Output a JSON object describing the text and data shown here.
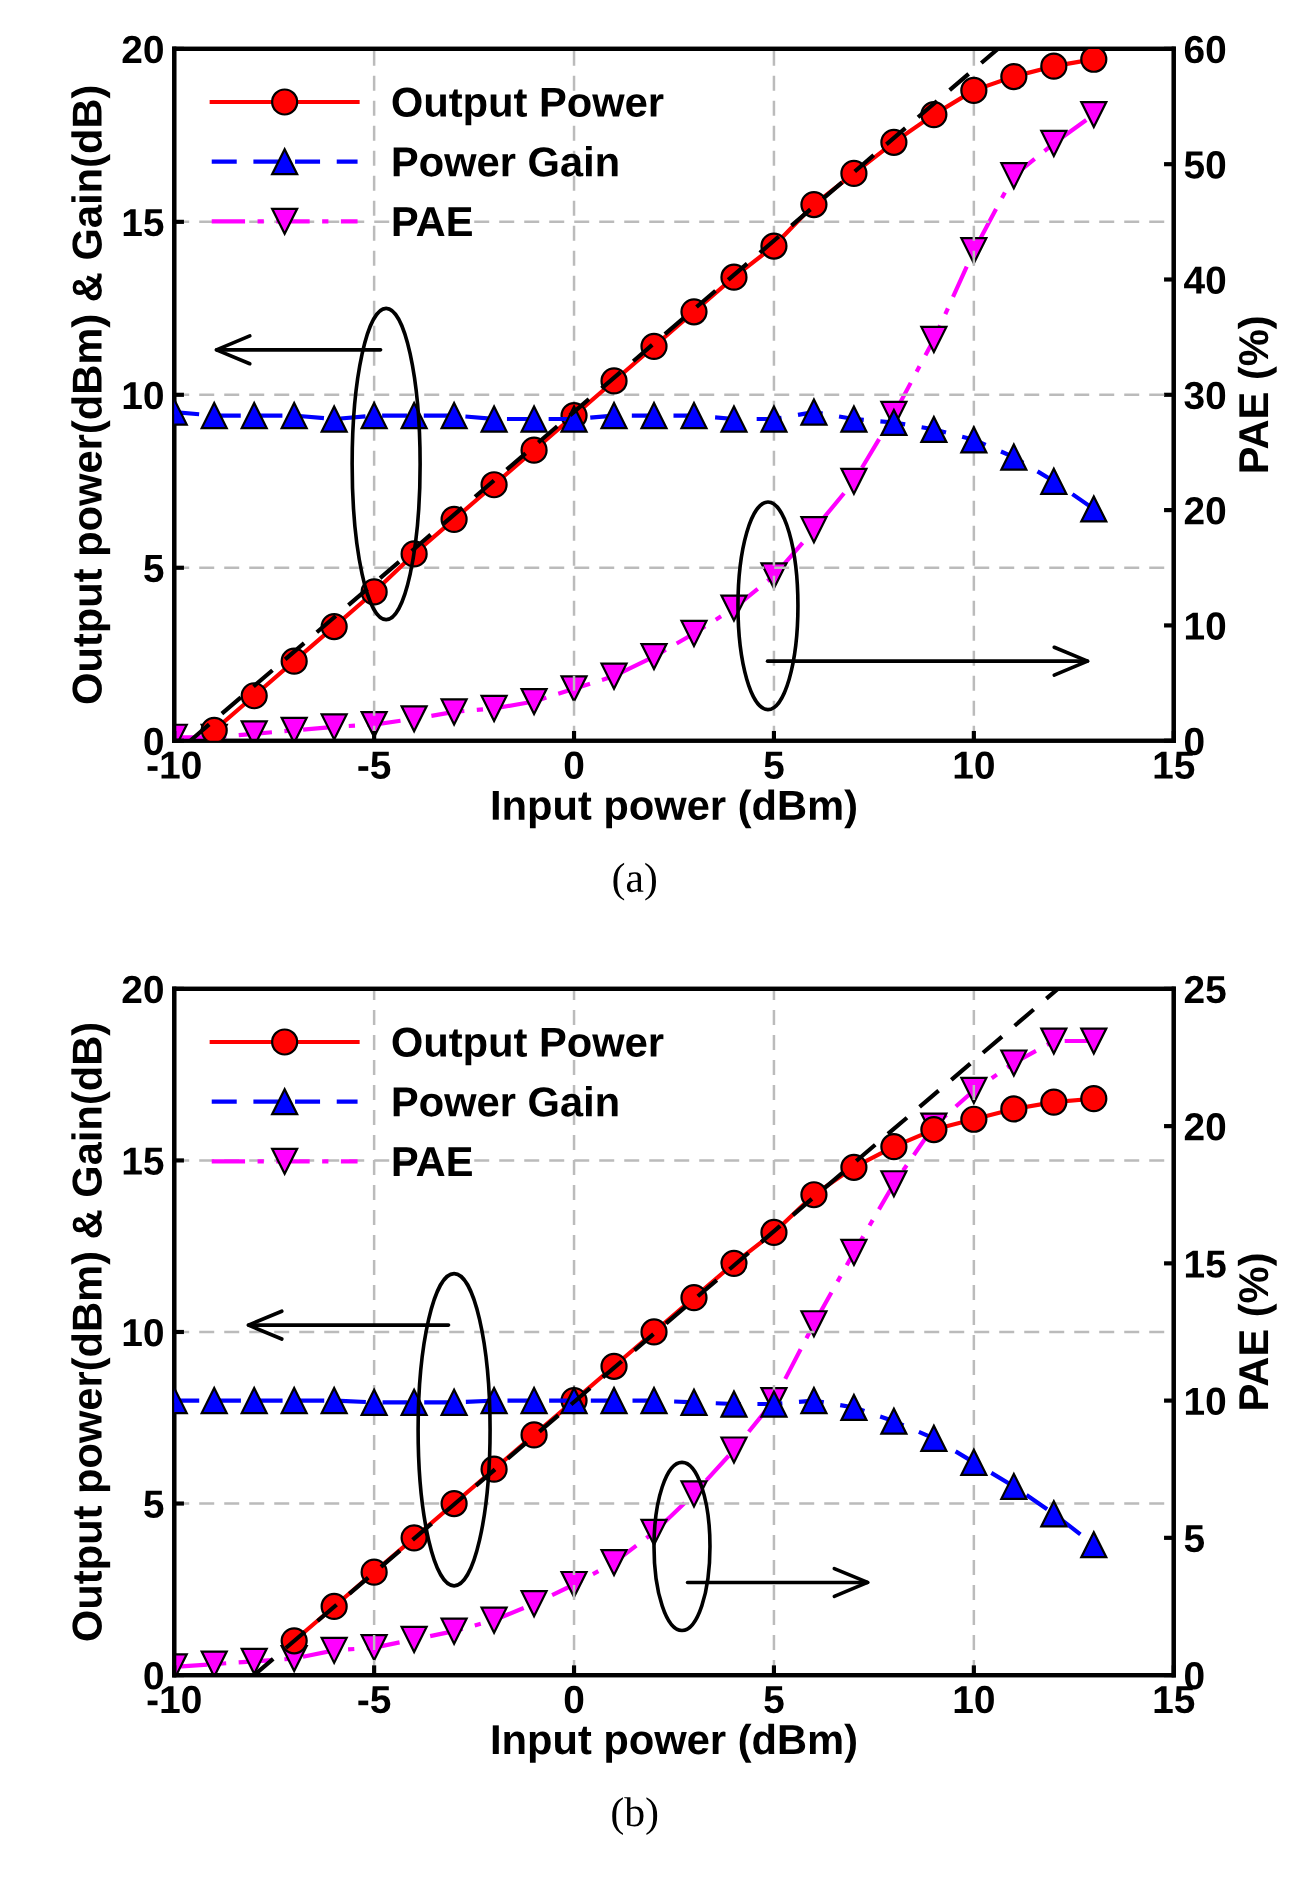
{
  "chart_data": [
    {
      "type": "line",
      "xlabel": "Input power (dBm)",
      "ylabel": "Output power(dBm) & Gain(dB)",
      "y2label": "PAE (%)",
      "annotations": [
        "(a)"
      ],
      "xlim": [
        -10,
        15
      ],
      "xticks": [
        -10,
        -5,
        0,
        5,
        10,
        15
      ],
      "ylim": [
        0,
        20
      ],
      "yticks": [
        0,
        5,
        10,
        15,
        20
      ],
      "y2lim": [
        0,
        60
      ],
      "y2ticks": [
        0,
        10,
        20,
        30,
        40,
        50,
        60
      ],
      "grid": true,
      "legend": "top left",
      "series": [
        {
          "name": "Output Power",
          "color": "#ff0000",
          "marker": "circle",
          "line_style": "solid",
          "x": [
            -9,
            -8,
            -7,
            -6,
            -5,
            -4,
            -3,
            -2,
            -1,
            0,
            1,
            2,
            3,
            4,
            5,
            6,
            7,
            8,
            9,
            10,
            11,
            12,
            13
          ],
          "values": [
            0.3,
            1.3,
            2.3,
            3.3,
            4.3,
            5.4,
            6.4,
            7.4,
            8.4,
            9.4,
            10.4,
            11.4,
            12.4,
            13.4,
            14.3,
            15.5,
            16.4,
            17.3,
            18.1,
            18.8,
            19.2,
            19.5,
            19.7
          ]
        },
        {
          "name": "Power Gain",
          "color": "#0000ff",
          "marker": "triangle",
          "line_style": "dashed",
          "x": [
            -10,
            -9,
            -8,
            -7,
            -6,
            -5,
            -4,
            -3,
            -2,
            -1,
            0,
            1,
            2,
            3,
            4,
            5,
            6,
            7,
            8,
            9,
            10,
            11,
            12,
            13
          ],
          "values": [
            9.5,
            9.4,
            9.4,
            9.4,
            9.3,
            9.4,
            9.4,
            9.4,
            9.3,
            9.3,
            9.3,
            9.4,
            9.4,
            9.4,
            9.3,
            9.3,
            9.5,
            9.3,
            9.2,
            9.0,
            8.7,
            8.2,
            7.5,
            6.7
          ]
        },
        {
          "name": "PAE",
          "color": "#ff00ff",
          "marker": "triangle_down",
          "line_style": "dashdot",
          "axis": "y2",
          "x": [
            -10,
            -9,
            -8,
            -7,
            -6,
            -5,
            -4,
            -3,
            -2,
            -1,
            0,
            1,
            2,
            3,
            4,
            5,
            6,
            7,
            8,
            9,
            10,
            11,
            12,
            13
          ],
          "values": [
            0.3,
            0.3,
            0.6,
            0.9,
            1.2,
            1.4,
            1.9,
            2.5,
            2.8,
            3.4,
            4.5,
            5.6,
            7.3,
            9.3,
            11.5,
            14.3,
            18.3,
            22.5,
            28.3,
            34.8,
            42.5,
            49,
            51.8,
            54.3
          ]
        },
        {
          "color": "#000000",
          "marker": "none",
          "line_style": "dashed",
          "x": [
            -9.6,
            10.6
          ],
          "values": [
            0,
            20
          ]
        }
      ]
    },
    {
      "type": "line",
      "xlabel": "Input power (dBm)",
      "ylabel": "Output power(dBm) & Gain(dB)",
      "y2label": "PAE (%)",
      "annotations": [
        "(b)"
      ],
      "xlim": [
        -10,
        15
      ],
      "xticks": [
        -10,
        -5,
        0,
        5,
        10,
        15
      ],
      "ylim": [
        0,
        20
      ],
      "yticks": [
        0,
        5,
        10,
        15,
        20
      ],
      "y2lim": [
        0,
        25
      ],
      "y2ticks": [
        0,
        5,
        10,
        15,
        20,
        25
      ],
      "grid": true,
      "legend": "top left",
      "series": [
        {
          "name": "Output Power",
          "color": "#ff0000",
          "marker": "circle",
          "line_style": "solid",
          "x": [
            -7,
            -6,
            -5,
            -4,
            -3,
            -2,
            -1,
            0,
            1,
            2,
            3,
            4,
            5,
            6,
            7,
            8,
            9,
            10,
            11,
            12,
            13
          ],
          "values": [
            1.0,
            2.0,
            3.0,
            4.0,
            5.0,
            6.0,
            7.0,
            8.0,
            9.0,
            10.0,
            11.0,
            12.0,
            12.9,
            14.0,
            14.8,
            15.4,
            15.9,
            16.2,
            16.5,
            16.7,
            16.8
          ]
        },
        {
          "name": "Power Gain",
          "color": "#0000ff",
          "marker": "triangle",
          "line_style": "dashed",
          "x": [
            -10,
            -9,
            -8,
            -7,
            -6,
            -5,
            -4,
            -3,
            -2,
            -1,
            0,
            1,
            2,
            3,
            4,
            5,
            6,
            7,
            8,
            9,
            10,
            11,
            12,
            13
          ],
          "values": [
            8.0,
            8.0,
            8.0,
            8.0,
            8.0,
            7.95,
            7.95,
            7.95,
            8.0,
            8.0,
            8.0,
            8.0,
            8.0,
            7.95,
            7.9,
            7.9,
            8.0,
            7.8,
            7.4,
            6.9,
            6.2,
            5.5,
            4.7,
            3.8
          ]
        },
        {
          "name": "PAE",
          "color": "#ff00ff",
          "marker": "triangle_down",
          "line_style": "dashdot",
          "axis": "y2",
          "x": [
            -10,
            -9,
            -8,
            -7,
            -6,
            -5,
            -4,
            -3,
            -2,
            -1,
            0,
            1,
            2,
            3,
            4,
            5,
            6,
            7,
            8,
            9,
            10,
            11,
            12,
            13
          ],
          "values": [
            0.3,
            0.4,
            0.5,
            0.6,
            0.9,
            1.0,
            1.3,
            1.6,
            2.0,
            2.6,
            3.3,
            4.1,
            5.2,
            6.6,
            8.2,
            10.0,
            12.8,
            15.4,
            17.9,
            20.0,
            21.3,
            22.3,
            23.1,
            23.1
          ]
        },
        {
          "color": "#000000",
          "marker": "none",
          "line_style": "dashed",
          "x": [
            -8,
            12.1
          ],
          "values": [
            0,
            20
          ]
        }
      ]
    }
  ]
}
